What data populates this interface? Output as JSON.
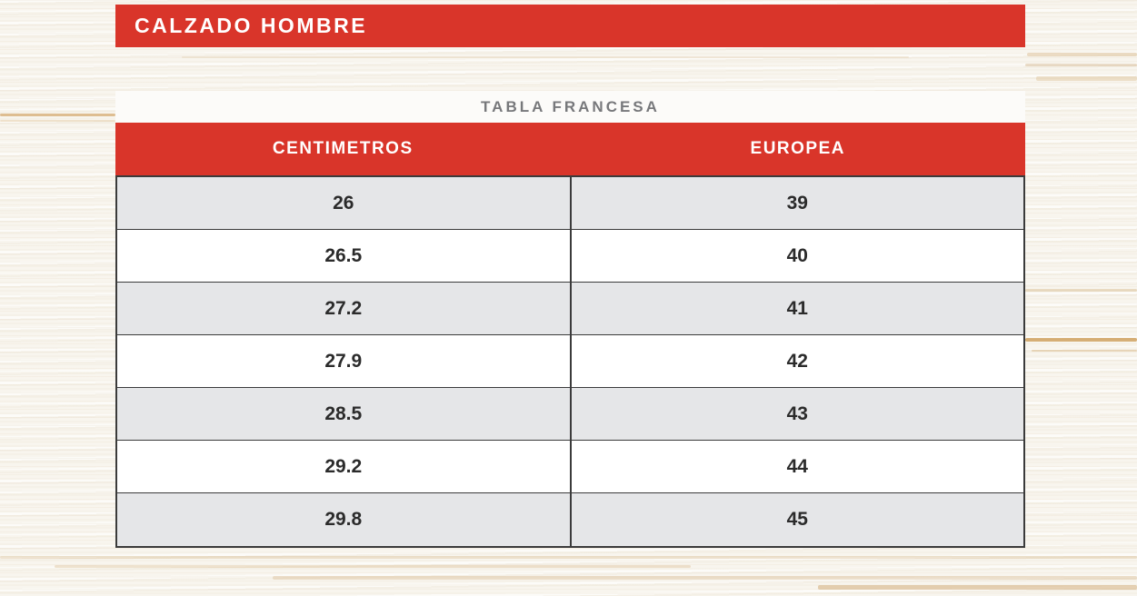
{
  "page_title": "CALZADO HOMBRE",
  "chart_data": {
    "type": "table",
    "title": "TABLA FRANCESA",
    "columns": [
      "CENTIMETROS",
      "EUROPEA"
    ],
    "rows": [
      [
        "26",
        "39"
      ],
      [
        "26.5",
        "40"
      ],
      [
        "27.2",
        "41"
      ],
      [
        "27.9",
        "42"
      ],
      [
        "28.5",
        "43"
      ],
      [
        "29.2",
        "44"
      ],
      [
        "29.8",
        "45"
      ]
    ]
  },
  "colors": {
    "accent_red": "#D9352A",
    "row_alt_gray": "#E5E6E8",
    "border_dark": "#3B3B3B",
    "subtitle_gray": "#77787B",
    "cell_text": "#2B2B2B",
    "wood_base": "#F8F5EE"
  }
}
